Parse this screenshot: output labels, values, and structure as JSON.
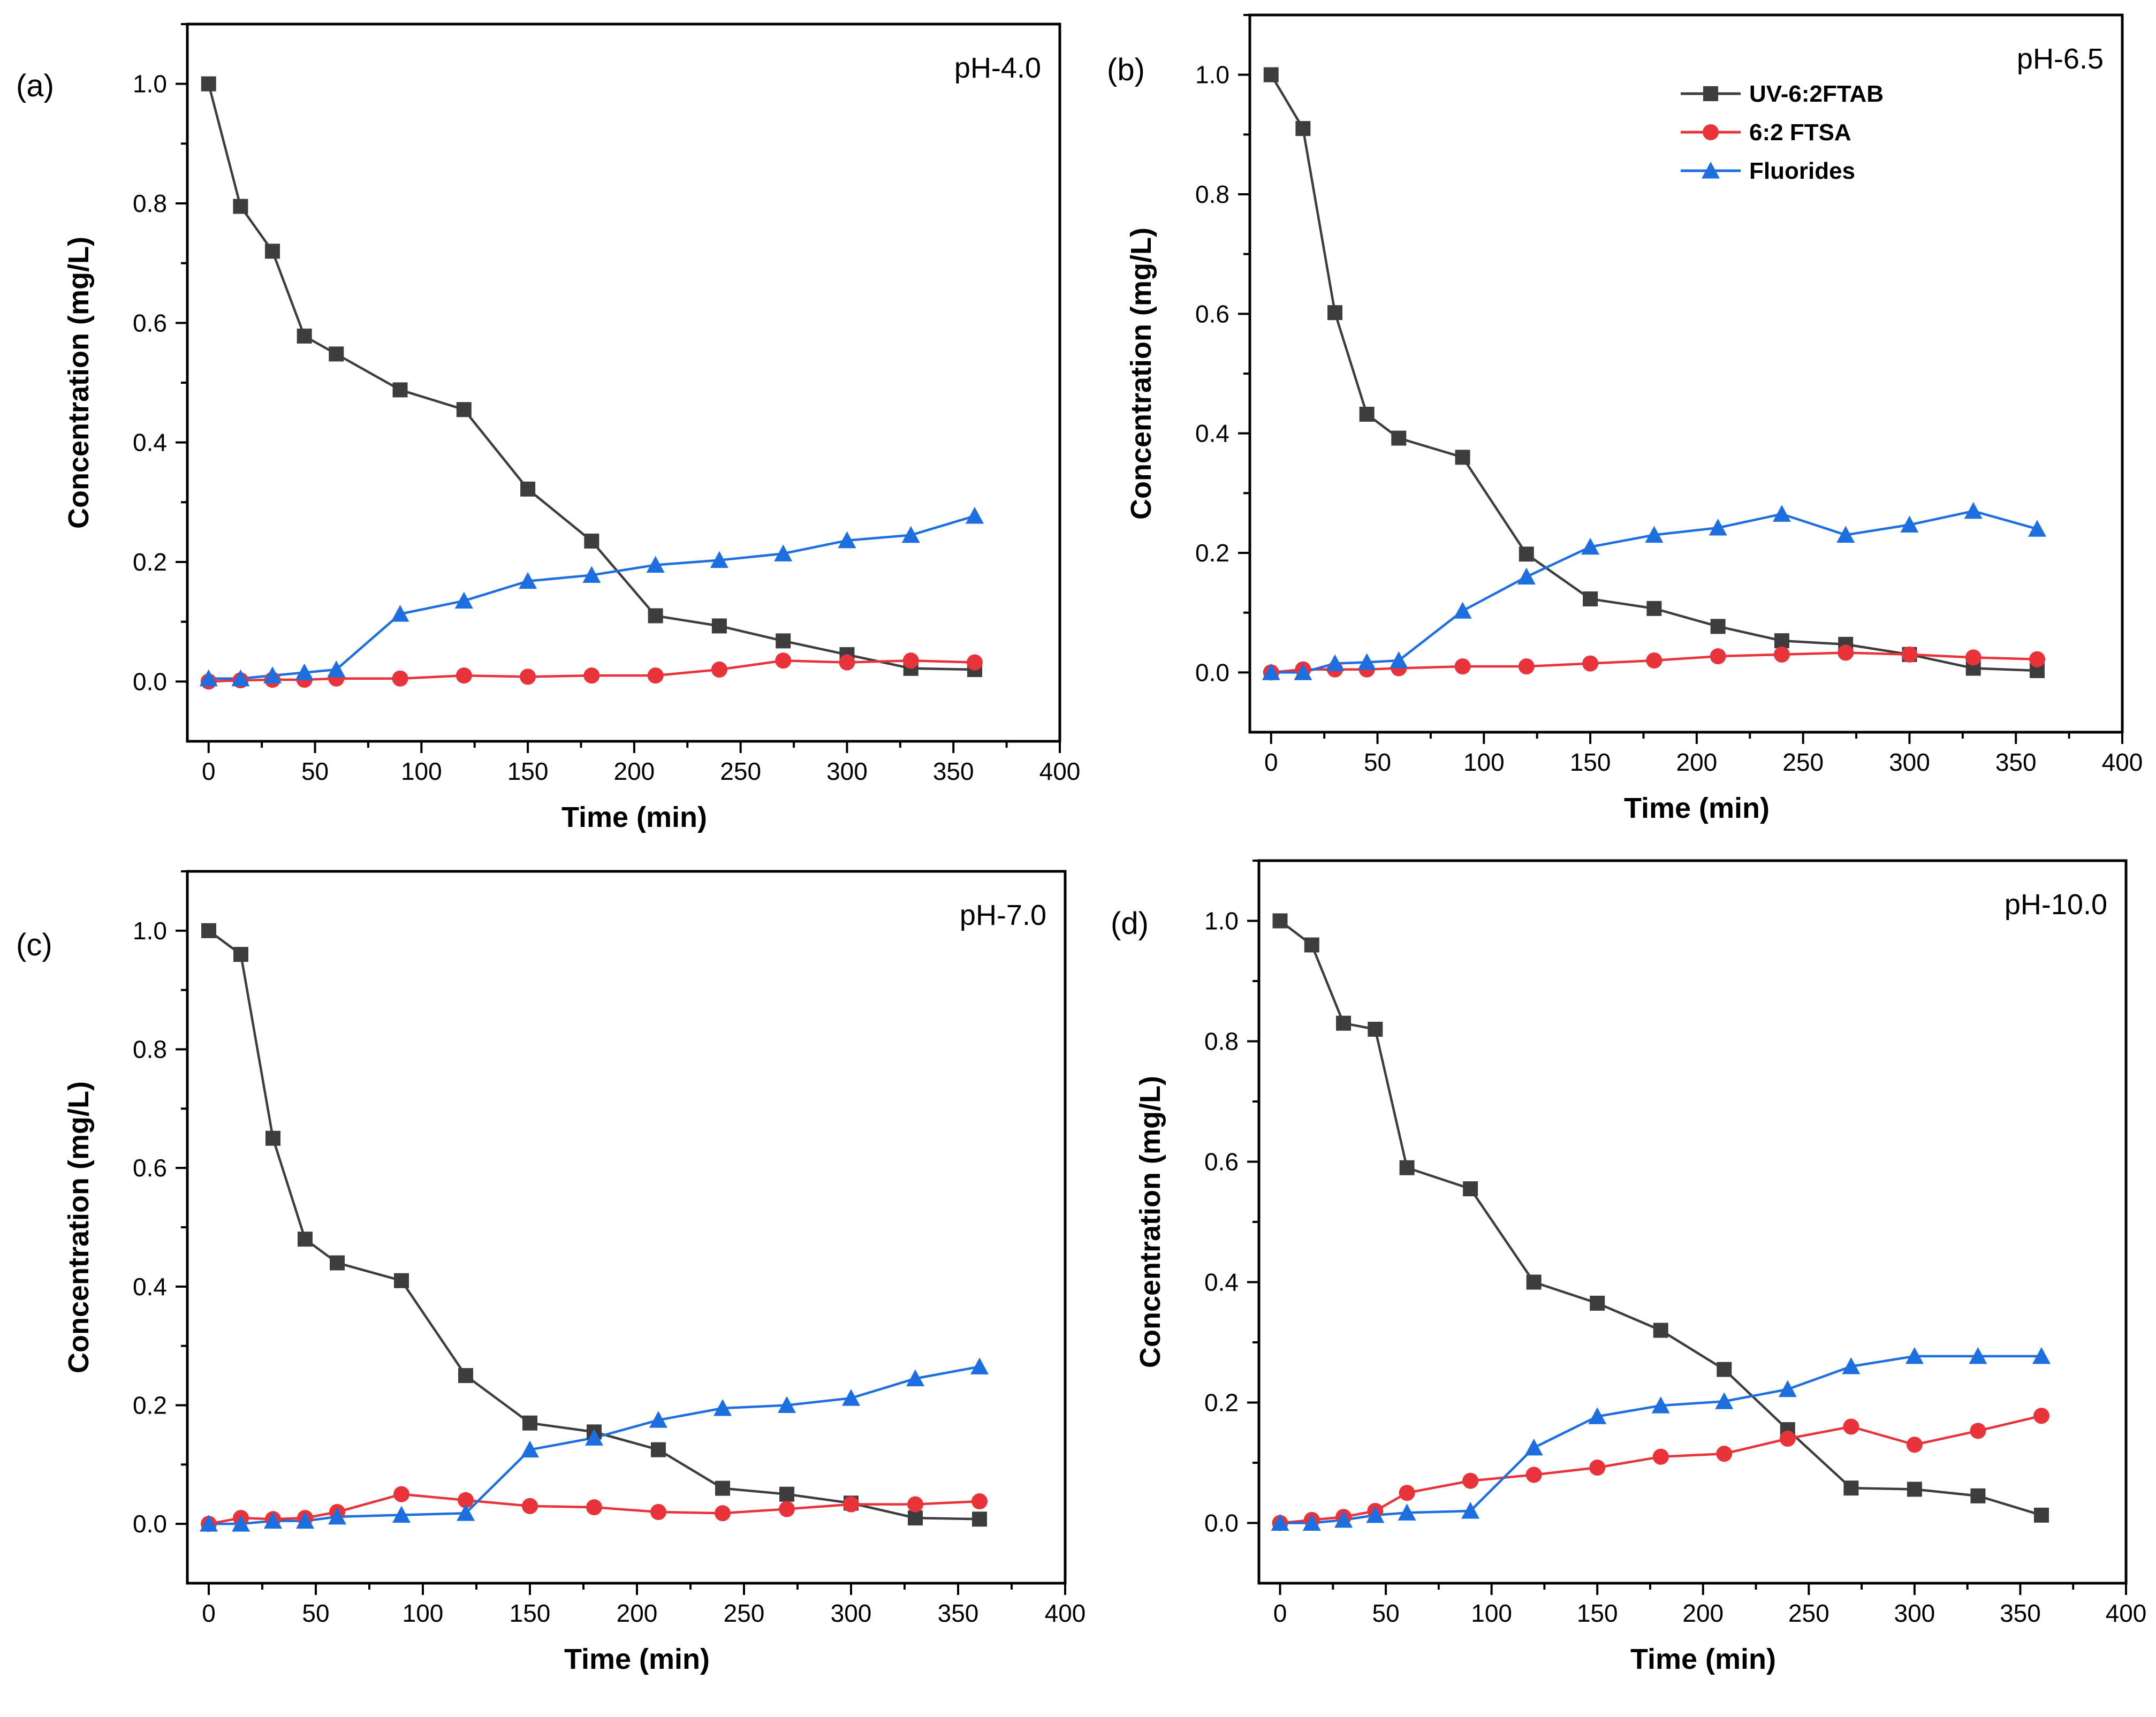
{
  "legend": {
    "entries": [
      {
        "name": "UV-6:2FTAB",
        "color": "#3d3d3d",
        "marker": "square"
      },
      {
        "name": "6:2 FTSA",
        "color": "#e8333a",
        "marker": "circle"
      },
      {
        "name": "Fluorides",
        "color": "#1d6fe0",
        "marker": "triangle"
      }
    ]
  },
  "chart_data": [
    {
      "type": "line",
      "panel": "(a)",
      "annotation": "pH-4.0",
      "xlabel": "Time (min)",
      "ylabel": "Concentration (mg/L)",
      "xlim": [
        -10,
        400
      ],
      "ylim": [
        -0.1,
        1.1
      ],
      "xticks": [
        0,
        50,
        100,
        150,
        200,
        250,
        300,
        350,
        400
      ],
      "xtick_labels": [
        "0",
        "50",
        "100",
        "150",
        "200",
        "250",
        "300",
        "350",
        "400"
      ],
      "yticks": [
        0,
        0.2,
        0.4,
        0.6,
        0.8,
        1.0
      ],
      "ytick_labels": [
        "0.0",
        "0.2",
        "0.4",
        "0.6",
        "0.8",
        "1.0"
      ],
      "x": [
        0,
        15,
        30,
        45,
        60,
        90,
        120,
        150,
        180,
        210,
        240,
        270,
        300,
        330,
        360
      ],
      "series": [
        {
          "name": "UV-6:2FTAB",
          "values": [
            1.0,
            0.795,
            0.72,
            0.578,
            0.548,
            0.488,
            0.455,
            0.322,
            0.235,
            0.11,
            0.093,
            0.068,
            0.045,
            0.022,
            0.02
          ]
        },
        {
          "name": "6:2 FTSA",
          "values": [
            0.0,
            0.002,
            0.003,
            0.003,
            0.005,
            0.005,
            0.01,
            0.008,
            0.01,
            0.01,
            0.02,
            0.035,
            0.032,
            0.035,
            0.032
          ]
        },
        {
          "name": "Fluorides",
          "values": [
            0.005,
            0.005,
            0.01,
            0.015,
            0.02,
            0.113,
            0.135,
            0.168,
            0.178,
            0.195,
            0.203,
            0.214,
            0.236,
            0.245,
            0.277
          ]
        }
      ]
    },
    {
      "type": "line",
      "panel": "(b)",
      "annotation": "pH-6.5",
      "xlabel": "Time (min)",
      "ylabel": "Concentration (mg/L)",
      "xlim": [
        -10,
        400
      ],
      "ylim": [
        -0.1,
        1.1
      ],
      "xticks": [
        0,
        50,
        100,
        150,
        200,
        250,
        300,
        350,
        400
      ],
      "xtick_labels": [
        "0",
        "50",
        "100",
        "150",
        "200",
        "250",
        "300",
        "350",
        "400"
      ],
      "yticks": [
        0,
        0.2,
        0.4,
        0.6,
        0.8,
        1.0
      ],
      "ytick_labels": [
        "0.0",
        "0.2",
        "0.4",
        "0.6",
        "0.8",
        "1.0"
      ],
      "x": [
        0,
        15,
        30,
        45,
        60,
        90,
        120,
        150,
        180,
        210,
        240,
        270,
        300,
        330,
        360
      ],
      "series": [
        {
          "name": "UV-6:2FTAB",
          "values": [
            1.0,
            0.91,
            0.602,
            0.432,
            0.392,
            0.36,
            0.198,
            0.123,
            0.107,
            0.077,
            0.053,
            0.047,
            0.03,
            0.007,
            0.003
          ]
        },
        {
          "name": "6:2 FTSA",
          "values": [
            0.0,
            0.005,
            0.005,
            0.005,
            0.007,
            0.01,
            0.01,
            0.015,
            0.02,
            0.027,
            0.03,
            0.033,
            0.03,
            0.025,
            0.022
          ]
        },
        {
          "name": "Fluorides",
          "values": [
            0.0,
            0.0,
            0.015,
            0.017,
            0.02,
            0.103,
            0.16,
            0.21,
            0.23,
            0.242,
            0.265,
            0.23,
            0.247,
            0.27,
            0.24
          ]
        }
      ]
    },
    {
      "type": "line",
      "panel": "(c)",
      "annotation": "pH-7.0",
      "xlabel": "Time (min)",
      "ylabel": "Concentration (mg/L)",
      "xlim": [
        -10,
        400
      ],
      "ylim": [
        -0.1,
        1.1
      ],
      "xticks": [
        0,
        50,
        100,
        150,
        200,
        250,
        300,
        350,
        400
      ],
      "xtick_labels": [
        "0",
        "50",
        "100",
        "150",
        "200",
        "250",
        "300",
        "350",
        "400"
      ],
      "yticks": [
        0,
        0.2,
        0.4,
        0.6,
        0.8,
        1.0
      ],
      "ytick_labels": [
        "0.0",
        "0.2",
        "0.4",
        "0.6",
        "0.8",
        "1.0"
      ],
      "x": [
        0,
        15,
        30,
        45,
        60,
        90,
        120,
        150,
        180,
        210,
        240,
        270,
        300,
        330,
        360
      ],
      "series": [
        {
          "name": "UV-6:2FTAB",
          "values": [
            1.0,
            0.96,
            0.65,
            0.48,
            0.44,
            0.41,
            0.25,
            0.17,
            0.155,
            0.125,
            0.06,
            0.05,
            0.035,
            0.01,
            0.008
          ]
        },
        {
          "name": "6:2 FTSA",
          "values": [
            0.0,
            0.01,
            0.008,
            0.01,
            0.02,
            0.05,
            0.04,
            0.03,
            0.028,
            0.02,
            0.018,
            0.025,
            0.033,
            0.033,
            0.038
          ]
        },
        {
          "name": "Fluorides",
          "values": [
            0.0,
            0.0,
            0.005,
            0.005,
            0.012,
            0.015,
            0.018,
            0.125,
            0.145,
            0.175,
            0.195,
            0.2,
            0.212,
            0.245,
            0.265
          ]
        }
      ]
    },
    {
      "type": "line",
      "panel": "(d)",
      "annotation": "pH-10.0",
      "xlabel": "Time (min)",
      "ylabel": "Concentration (mg/L)",
      "xlim": [
        -10,
        400
      ],
      "ylim": [
        -0.1,
        1.1
      ],
      "xticks": [
        0,
        50,
        100,
        150,
        200,
        250,
        300,
        350,
        400
      ],
      "xtick_labels": [
        "0",
        "50",
        "100",
        "150",
        "200",
        "250",
        "300",
        "350",
        "400"
      ],
      "yticks": [
        0,
        0.2,
        0.4,
        0.6,
        0.8,
        1.0
      ],
      "ytick_labels": [
        "0.0",
        "0.2",
        "0.4",
        "0.6",
        "0.8",
        "1.0"
      ],
      "x": [
        0,
        15,
        30,
        45,
        60,
        90,
        120,
        150,
        180,
        210,
        240,
        270,
        300,
        330,
        360
      ],
      "series": [
        {
          "name": "UV-6:2FTAB",
          "values": [
            1.0,
            0.96,
            0.83,
            0.82,
            0.59,
            0.555,
            0.4,
            0.365,
            0.32,
            0.255,
            0.155,
            0.058,
            0.056,
            0.045,
            0.013
          ]
        },
        {
          "name": "6:2 FTSA",
          "values": [
            0.0,
            0.005,
            0.01,
            0.02,
            0.05,
            0.07,
            0.08,
            0.092,
            0.11,
            0.115,
            0.14,
            0.16,
            0.13,
            0.153,
            0.178
          ]
        },
        {
          "name": "Fluorides",
          "values": [
            0.0,
            0.0,
            0.005,
            0.013,
            0.017,
            0.02,
            0.125,
            0.177,
            0.195,
            0.202,
            0.222,
            0.26,
            0.277,
            0.277,
            0.277
          ]
        }
      ]
    }
  ]
}
